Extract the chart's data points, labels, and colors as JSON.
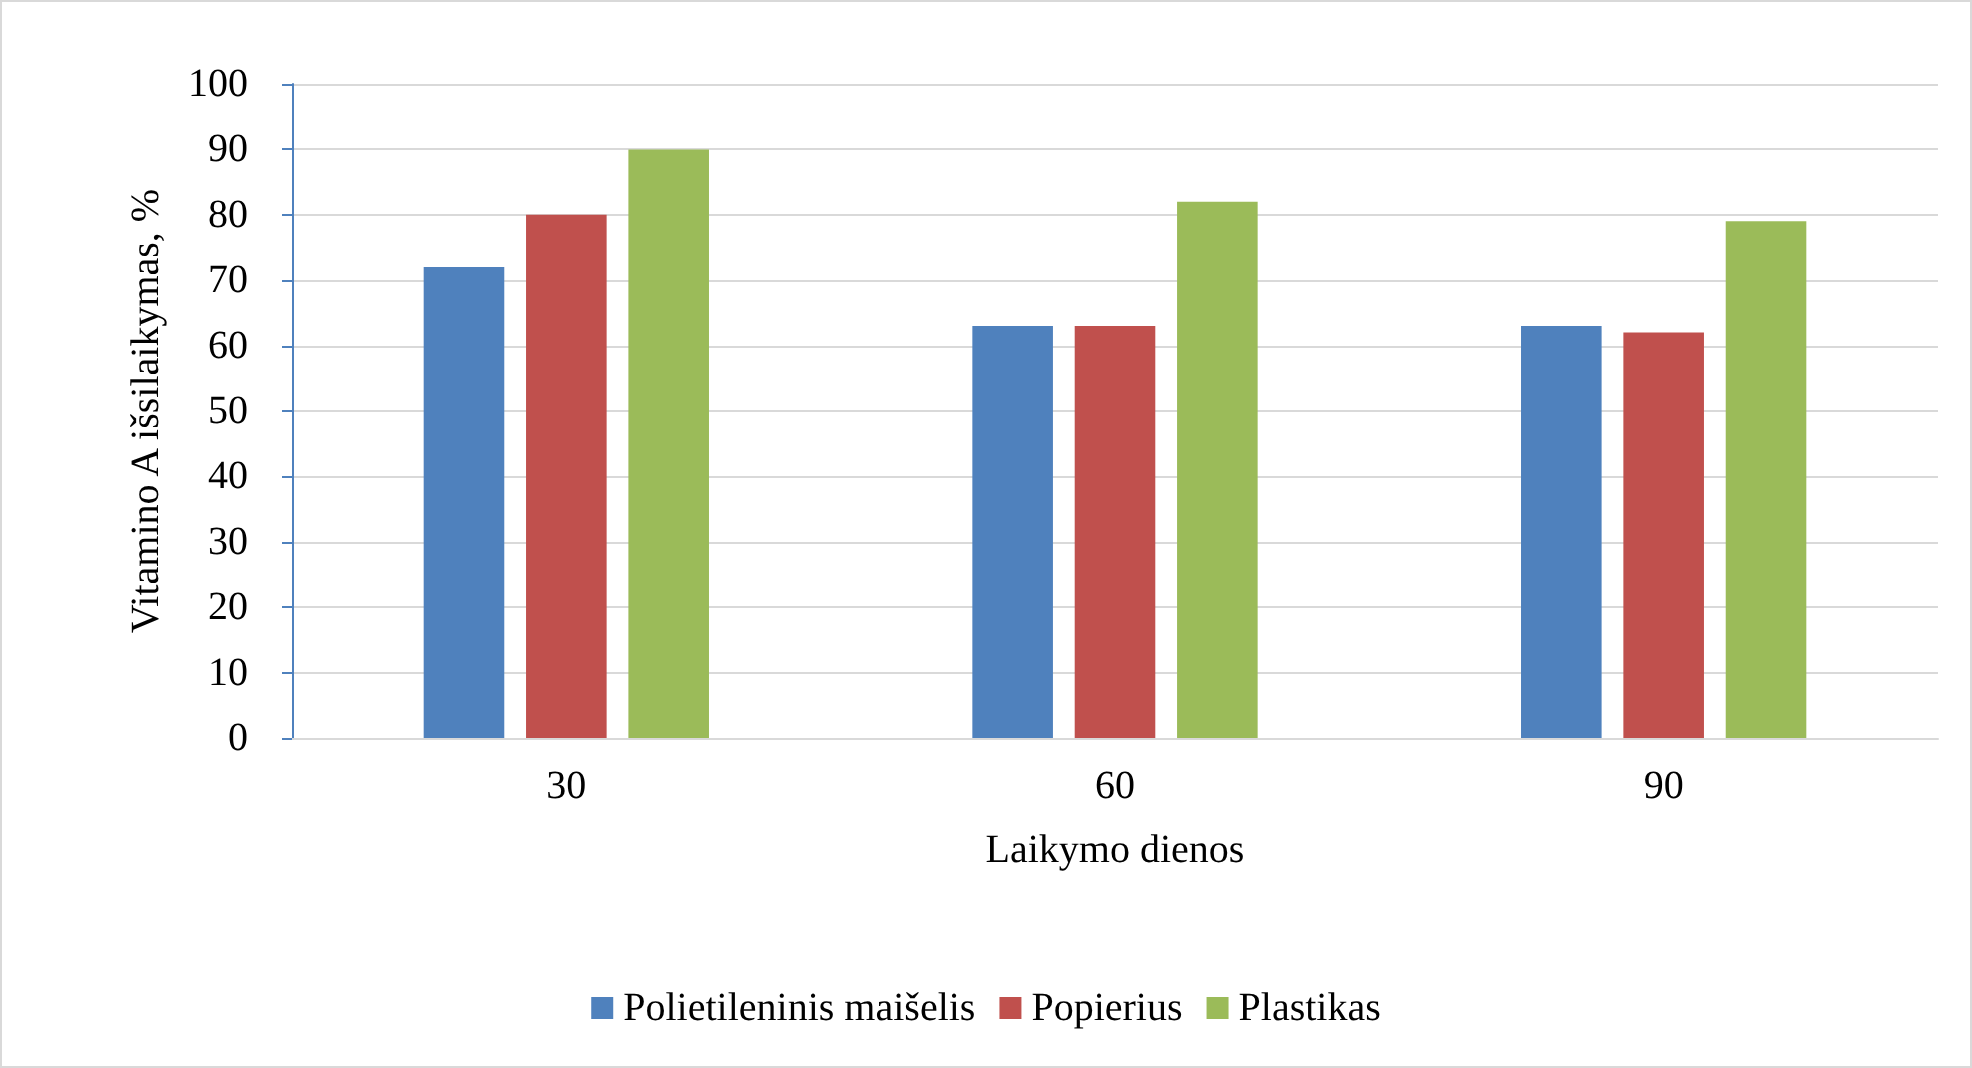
{
  "chart_data": {
    "type": "bar",
    "xlabel": "Laikymo dienos",
    "ylabel": "Vitamino A išsilaikymas, %",
    "categories": [
      "30",
      "60",
      "90"
    ],
    "series": [
      {
        "name": "Polietileninis maišelis",
        "color": "#4f81bd",
        "values": [
          72,
          63,
          63
        ]
      },
      {
        "name": "Popierius",
        "color": "#c0504d",
        "values": [
          80,
          63,
          62
        ]
      },
      {
        "name": "Plastikas",
        "color": "#9bbb59",
        "values": [
          90,
          82,
          79
        ]
      }
    ],
    "ylim": [
      0,
      100
    ],
    "yticks": [
      0,
      10,
      20,
      30,
      40,
      50,
      60,
      70,
      80,
      90,
      100
    ],
    "grid": "y",
    "legend": "bottom"
  }
}
